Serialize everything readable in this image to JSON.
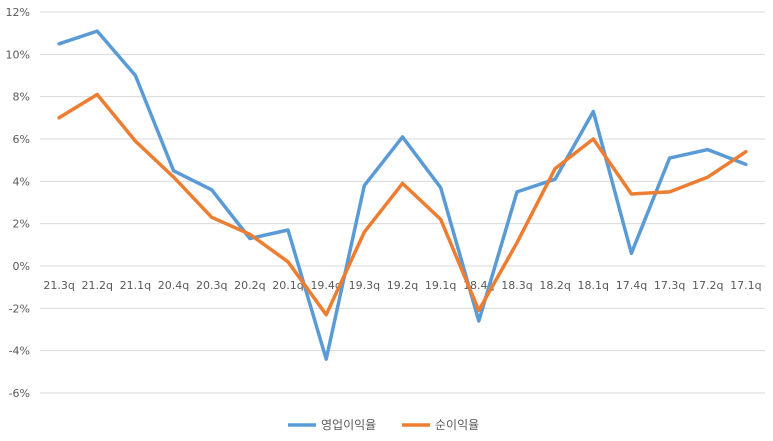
{
  "chart_data": {
    "type": "line",
    "categories": [
      "21.3q",
      "21.2q",
      "21.1q",
      "20.4q",
      "20.3q",
      "20.2q",
      "20.1q",
      "19.4q",
      "19.3q",
      "19.2q",
      "19.1q",
      "18.4q",
      "18.3q",
      "18.2q",
      "18.1q",
      "17.4q",
      "17.3q",
      "17.2q",
      "17.1q"
    ],
    "y_ticks": [
      "12%",
      "10%",
      "8%",
      "6%",
      "4%",
      "2%",
      "0%",
      "-2%",
      "-4%",
      "-6%"
    ],
    "ylim": [
      -6,
      12
    ],
    "grid": "horizontal",
    "legend_position": "bottom",
    "series": [
      {
        "name": "영업이익율",
        "color": "#5B9BD5",
        "values": [
          10.5,
          11.1,
          9.0,
          4.5,
          3.6,
          1.3,
          1.7,
          -4.4,
          3.8,
          6.1,
          3.7,
          -2.6,
          3.5,
          4.1,
          7.3,
          0.6,
          5.1,
          5.5,
          4.8
        ]
      },
      {
        "name": "순이익율",
        "color": "#ED7D31",
        "values": [
          7.0,
          8.1,
          5.9,
          4.2,
          2.3,
          1.5,
          0.2,
          -2.3,
          1.6,
          3.9,
          2.2,
          -2.1,
          1.1,
          4.6,
          6.0,
          3.4,
          3.5,
          4.2,
          5.4
        ]
      }
    ]
  }
}
